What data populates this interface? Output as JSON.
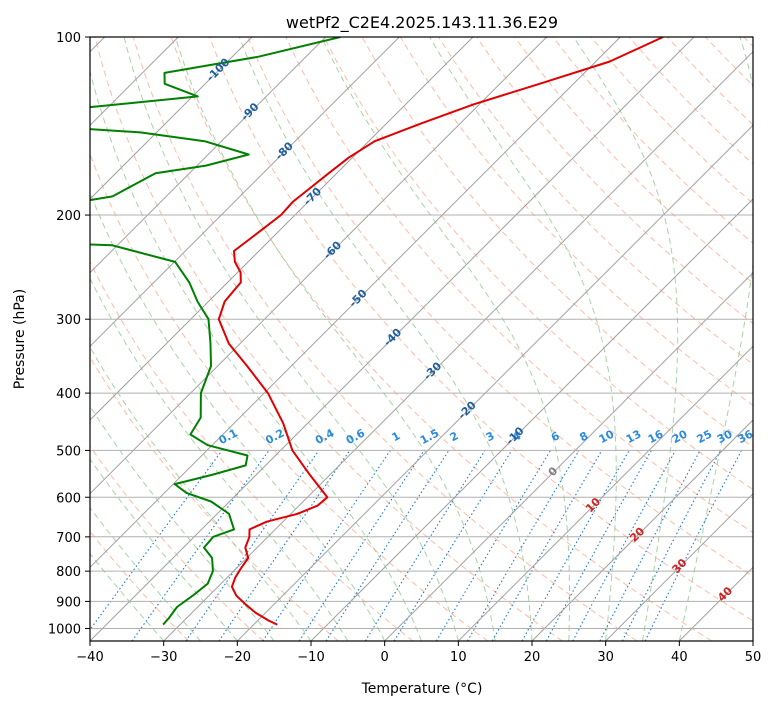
{
  "chart_data": {
    "type": "line",
    "subtype": "skew-T log-P diagram",
    "title": "wetPf2_C2E4.2025.143.11.36.E29",
    "xlabel": "Temperature (°C)",
    "ylabel": "Pressure (hPa)",
    "xlim": [
      -40,
      50
    ],
    "ylim": [
      1050,
      100
    ],
    "y_scale": "log",
    "grid": true,
    "x_ticks": [
      -40,
      -30,
      -20,
      -10,
      0,
      10,
      20,
      30,
      40,
      50
    ],
    "x_tick_labels": [
      "−40",
      "−30",
      "−20",
      "−10",
      "0",
      "10",
      "20",
      "30",
      "40",
      "50"
    ],
    "y_ticks": [
      100,
      200,
      300,
      400,
      500,
      600,
      700,
      800,
      900,
      1000
    ],
    "y_tick_labels": [
      "100",
      "200",
      "300",
      "400",
      "500",
      "600",
      "700",
      "800",
      "900",
      "1000"
    ],
    "series": [
      {
        "role": "temperature",
        "color": "#e00000",
        "points": [
          [
            100,
            -44.2
          ],
          [
            110,
            -48.1
          ],
          [
            120,
            -54.6
          ],
          [
            130,
            -60.8
          ],
          [
            140,
            -65.3
          ],
          [
            150,
            -69.2
          ],
          [
            160,
            -70.5
          ],
          [
            170,
            -71.1
          ],
          [
            180,
            -71.6
          ],
          [
            190,
            -72.1
          ],
          [
            200,
            -71.9
          ],
          [
            210,
            -72.4
          ],
          [
            220,
            -72.9
          ],
          [
            230,
            -73.4
          ],
          [
            240,
            -71.8
          ],
          [
            250,
            -69.6
          ],
          [
            260,
            -68.2
          ],
          [
            280,
            -67.8
          ],
          [
            300,
            -66.2
          ],
          [
            330,
            -61.5
          ],
          [
            360,
            -56.0
          ],
          [
            400,
            -49.5
          ],
          [
            450,
            -43.3
          ],
          [
            500,
            -38.4
          ],
          [
            550,
            -32.7
          ],
          [
            600,
            -27.3
          ],
          [
            620,
            -27.5
          ],
          [
            640,
            -29.1
          ],
          [
            660,
            -32.2
          ],
          [
            680,
            -33.5
          ],
          [
            700,
            -32.5
          ],
          [
            730,
            -31.6
          ],
          [
            760,
            -29.8
          ],
          [
            790,
            -29.4
          ],
          [
            820,
            -28.9
          ],
          [
            850,
            -28.1
          ],
          [
            880,
            -26.3
          ],
          [
            910,
            -23.9
          ],
          [
            940,
            -21.4
          ],
          [
            970,
            -18.5
          ],
          [
            985,
            -16.8
          ]
        ]
      },
      {
        "role": "dewpoint",
        "color": "#008000",
        "points": [
          [
            100,
            -88.0
          ],
          [
            108,
            -96.5
          ],
          [
            115,
            -107.0
          ],
          [
            120,
            -105.5
          ],
          [
            126,
            -99.3
          ],
          [
            131,
            -111.5
          ],
          [
            135,
            -122.9
          ],
          [
            140,
            -122.5
          ],
          [
            145,
            -102.2
          ],
          [
            150,
            -92.3
          ],
          [
            158,
            -84.5
          ],
          [
            165,
            -88.8
          ],
          [
            170,
            -94.6
          ],
          [
            178,
            -96.0
          ],
          [
            186,
            -97.3
          ],
          [
            195,
            -105.5
          ],
          [
            200,
            -125.4
          ],
          [
            210,
            -124.5
          ],
          [
            218,
            -120.2
          ],
          [
            225,
            -90.7
          ],
          [
            240,
            -79.9
          ],
          [
            260,
            -75.2
          ],
          [
            280,
            -71.5
          ],
          [
            300,
            -67.6
          ],
          [
            330,
            -64.0
          ],
          [
            360,
            -60.9
          ],
          [
            400,
            -58.6
          ],
          [
            440,
            -55.3
          ],
          [
            470,
            -54.4
          ],
          [
            490,
            -50.6
          ],
          [
            510,
            -43.8
          ],
          [
            530,
            -42.7
          ],
          [
            550,
            -46.0
          ],
          [
            570,
            -49.8
          ],
          [
            590,
            -47.0
          ],
          [
            610,
            -42.5
          ],
          [
            640,
            -38.4
          ],
          [
            680,
            -35.6
          ],
          [
            700,
            -37.4
          ],
          [
            730,
            -37.2
          ],
          [
            760,
            -34.7
          ],
          [
            800,
            -32.8
          ],
          [
            840,
            -31.8
          ],
          [
            880,
            -32.2
          ],
          [
            920,
            -32.8
          ],
          [
            960,
            -32.4
          ],
          [
            985,
            -32.3
          ]
        ]
      }
    ],
    "mixing_ratio_labels": [
      "0.1",
      "0.2",
      "0.4",
      "0.6",
      "1",
      "1.5",
      "2",
      "3",
      "4",
      "6",
      "8",
      "10",
      "13",
      "16",
      "20",
      "25",
      "30",
      "36"
    ],
    "mixing_ratio_values": [
      0.1,
      0.2,
      0.4,
      0.6,
      1,
      1.5,
      2,
      3,
      4,
      6,
      8,
      10,
      13,
      16,
      20,
      25,
      30,
      36
    ],
    "isotherm_labels": [
      "-100",
      "-90",
      "-80",
      "-70",
      "-60",
      "-50",
      "-40",
      "-30",
      "-20",
      "-10",
      "0",
      "10",
      "20",
      "30",
      "40"
    ],
    "isotherm_values": [
      -100,
      -90,
      -80,
      -70,
      -60,
      -50,
      -40,
      -30,
      -20,
      -10,
      0,
      10,
      20,
      30,
      40
    ],
    "colors": {
      "temperature": "#e00000",
      "dewpoint": "#008000",
      "isotherm": "#a0a0a0",
      "dry_adiabat": "#ff9f80",
      "moist_adiabat": "#90c890",
      "mixing_ratio": "#1e78dc",
      "isotherm_label_cold": "#1f5fa0",
      "isotherm_label_zero": "#808080",
      "isotherm_label_warm": "#d02020",
      "mixing_ratio_label": "#2a8ae0"
    }
  }
}
